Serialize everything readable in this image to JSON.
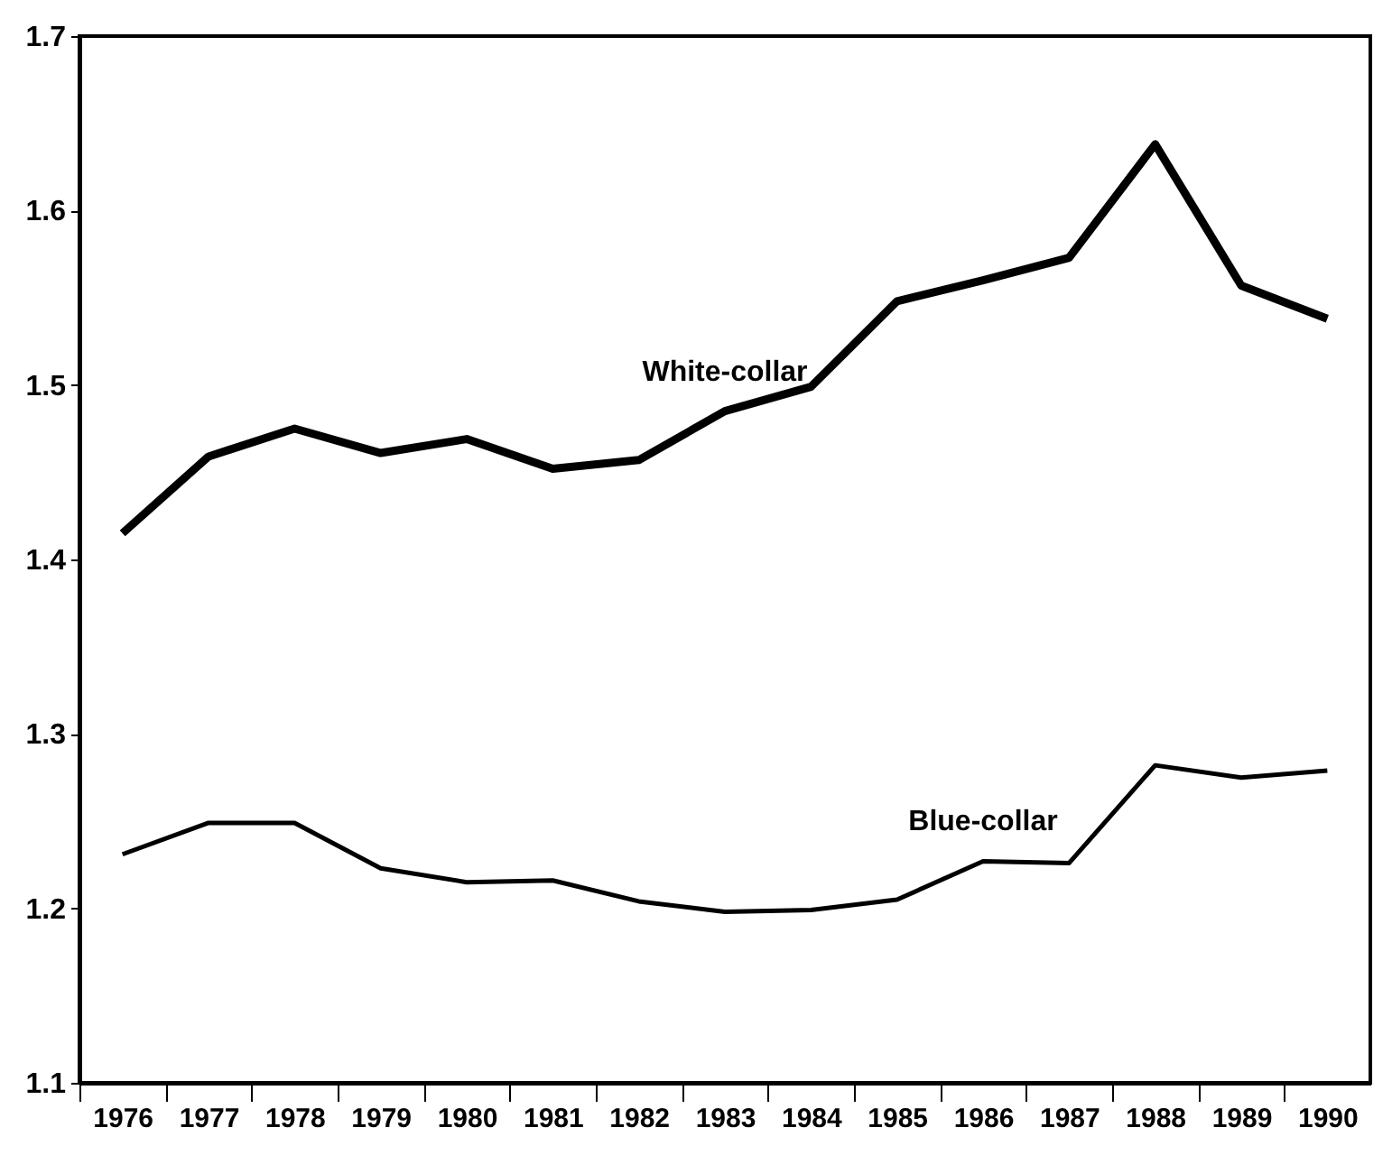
{
  "chart_data": {
    "type": "line",
    "categories": [
      "1976",
      "1977",
      "1978",
      "1979",
      "1980",
      "1981",
      "1982",
      "1983",
      "1984",
      "1985",
      "1986",
      "1987",
      "1988",
      "1989",
      "1990"
    ],
    "series": [
      {
        "name": "White-collar",
        "color": "#000000",
        "values": [
          1.415,
          1.459,
          1.475,
          1.461,
          1.469,
          1.452,
          1.457,
          1.485,
          1.499,
          1.548,
          1.56,
          1.573,
          1.638,
          1.557,
          1.538
        ]
      },
      {
        "name": "Blue-collar",
        "color": "#000000",
        "values": [
          1.231,
          1.249,
          1.249,
          1.223,
          1.215,
          1.216,
          1.204,
          1.198,
          1.199,
          1.205,
          1.227,
          1.226,
          1.282,
          1.275,
          1.279
        ]
      }
    ],
    "ylim": [
      1.1,
      1.7
    ],
    "yticks": [
      1.1,
      1.2,
      1.3,
      1.4,
      1.5,
      1.6,
      1.7
    ],
    "marker": "none",
    "line_style": "solid"
  }
}
